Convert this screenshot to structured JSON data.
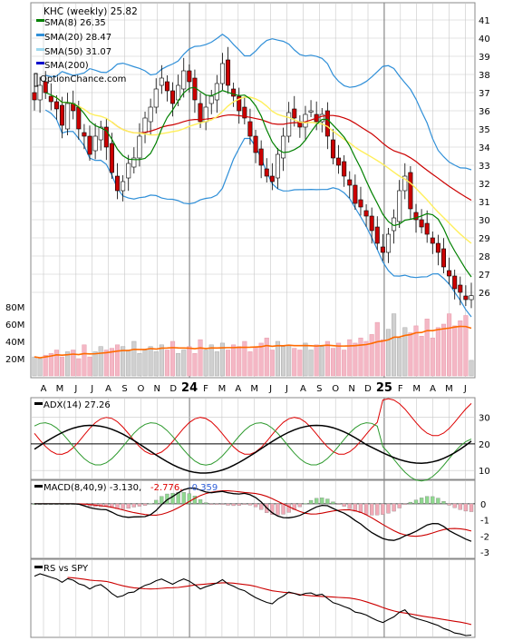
{
  "header": {
    "title": "KHC (weekly) 25.82",
    "watermark": "OptionChance.com"
  },
  "colors": {
    "sma8": "#008000",
    "sma20": "#2f8fd8",
    "sma50": "#ffef5c",
    "sma200": "#0000cc",
    "redline": "#cc0000",
    "up_candle": "#2ea82e",
    "down_candle": "#cc0000",
    "volume_up": "#d0d0d0",
    "volume_down": "#f4b7c5",
    "volume_ma": "#ff6a00",
    "grid": "#c8c8c8",
    "adx": "#000000",
    "plus_di": "#2e9a2e",
    "minus_di": "#dd0000",
    "macd_pos": "#8fd88f",
    "macd_neg": "#f2a9b6"
  },
  "legend": [
    {
      "label": "SMA(8) 26.35",
      "color": "#008000"
    },
    {
      "label": "SMA(20) 28.47",
      "color": "#2f8fd8"
    },
    {
      "label": "SMA(50) 31.07",
      "color": "#9ed8ee"
    },
    {
      "label": "SMA(200)",
      "color": "#0000cc"
    }
  ],
  "chart_data": [
    {
      "type": "candlestick",
      "title": "KHC (weekly) 25.82",
      "ylim": [
        25,
        41.5
      ],
      "y_ticks": [
        26,
        27,
        28,
        29,
        30,
        31,
        32,
        33,
        34,
        35,
        36,
        37,
        38,
        39,
        40,
        41
      ],
      "x_labels": [
        "A",
        "M",
        "J",
        "J",
        "A",
        "S",
        "O",
        "N",
        "D",
        "24",
        "F",
        "M",
        "A",
        "M",
        "J",
        "J",
        "A",
        "S",
        "O",
        "N",
        "D",
        "25",
        "F",
        "M",
        "A",
        "M",
        "J"
      ],
      "series_close": [
        36.6,
        37.4,
        37.0,
        36.5,
        36.1,
        35.2,
        36.4,
        36.0,
        35.0,
        34.6,
        33.6,
        34.6,
        35.1,
        34.0,
        32.6,
        31.6,
        32.1,
        33.1,
        33.4,
        34.6,
        35.6,
        36.2,
        37.2,
        37.8,
        37.1,
        36.4,
        37.4,
        38.2,
        37.6,
        36.6,
        35.4,
        36.2,
        36.8,
        37.5,
        38.6,
        37.4,
        36.8,
        36.0,
        35.6,
        34.6,
        33.7,
        33.0,
        32.4,
        32.1,
        33.6,
        34.6,
        35.9,
        35.6,
        35.1,
        35.8,
        36.0,
        35.4,
        35.8,
        34.6,
        33.4,
        33.0,
        32.4,
        31.9,
        30.9,
        30.7,
        30.2,
        29.4,
        28.7,
        28.2,
        29.2,
        30.1,
        31.6,
        32.4,
        30.6,
        30.0,
        29.6,
        29.2,
        28.7,
        28.2,
        27.4,
        26.9,
        26.2,
        26.0,
        25.6,
        25.82
      ],
      "volume_ylim": [
        0,
        90
      ],
      "volume_ticks": [
        "20M",
        "40M",
        "60M",
        "80M"
      ],
      "volume_values": [
        22,
        20,
        24,
        26,
        30,
        22,
        28,
        30,
        20,
        36,
        22,
        28,
        34,
        30,
        32,
        36,
        34,
        30,
        40,
        26,
        30,
        34,
        28,
        36,
        30,
        40,
        26,
        30,
        34,
        26,
        42,
        30,
        36,
        28,
        38,
        30,
        36,
        34,
        40,
        28,
        34,
        38,
        44,
        30,
        40,
        34,
        36,
        32,
        30,
        38,
        30,
        36,
        34,
        40,
        32,
        38,
        30,
        42,
        38,
        44,
        40,
        48,
        62,
        42,
        54,
        72,
        44,
        56,
        50,
        58,
        46,
        66,
        44,
        56,
        60,
        72,
        58,
        64,
        70,
        18
      ]
    },
    {
      "type": "line",
      "title": "ADX(14) 27.26",
      "ylim": [
        8,
        34
      ],
      "y_ticks": [
        10,
        20,
        30
      ]
    },
    {
      "type": "line",
      "title": "MACD(8,40,9) -3.130,",
      "macd_value": "-2.776,",
      "signal_value": "-0.359",
      "ylim": [
        -3.3,
        0.9
      ],
      "y_ticks": [
        "0",
        "-1",
        "-2",
        "-3"
      ]
    },
    {
      "type": "line",
      "title": "RS vs SPY"
    }
  ]
}
